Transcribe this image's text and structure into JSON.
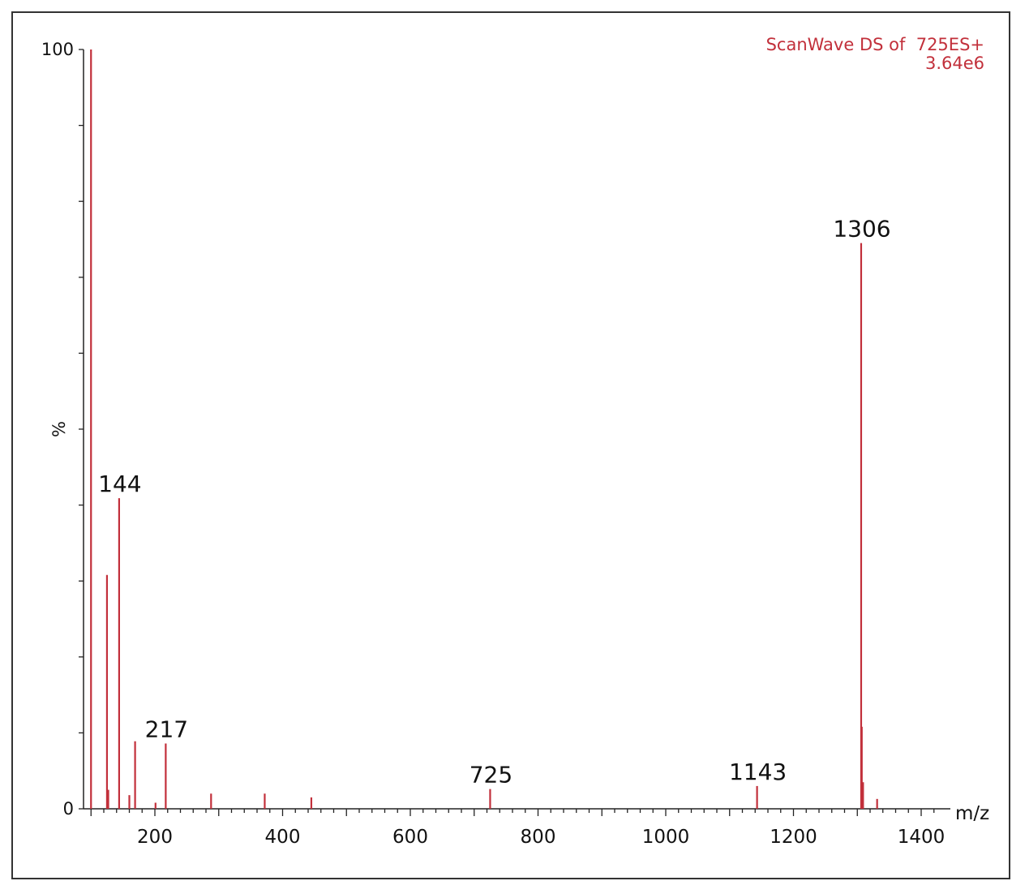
{
  "header": {
    "title": "ScanWave DS of  725ES+",
    "intensity": "3.64e6"
  },
  "colors": {
    "peak": "#c2303b",
    "axis": "#222222",
    "text": "#111111"
  },
  "chart_data": {
    "type": "bar",
    "xlabel": "m/z",
    "ylabel": "%",
    "xlim": [
      90,
      1430
    ],
    "ylim": [
      0,
      100
    ],
    "x_ticks": [
      200,
      400,
      600,
      800,
      1000,
      1200,
      1400
    ],
    "y_ticks": [
      0,
      100
    ],
    "peaks": [
      {
        "x": 100,
        "y": 100
      },
      {
        "x": 125,
        "y": 30.8
      },
      {
        "x": 127,
        "y": 2.5
      },
      {
        "x": 144,
        "y": 40.9,
        "label": "144"
      },
      {
        "x": 160,
        "y": 1.8
      },
      {
        "x": 169,
        "y": 8.9
      },
      {
        "x": 201,
        "y": 0.8
      },
      {
        "x": 217,
        "y": 8.6,
        "label": "217"
      },
      {
        "x": 288,
        "y": 2.0
      },
      {
        "x": 372,
        "y": 2.0
      },
      {
        "x": 445,
        "y": 1.5
      },
      {
        "x": 725,
        "y": 2.6,
        "label": "725"
      },
      {
        "x": 1143,
        "y": 3.0,
        "label": "1143"
      },
      {
        "x": 1306,
        "y": 74.5,
        "label": "1306"
      },
      {
        "x": 1307,
        "y": 10.8
      },
      {
        "x": 1309,
        "y": 3.5
      },
      {
        "x": 1331,
        "y": 1.3
      }
    ]
  }
}
